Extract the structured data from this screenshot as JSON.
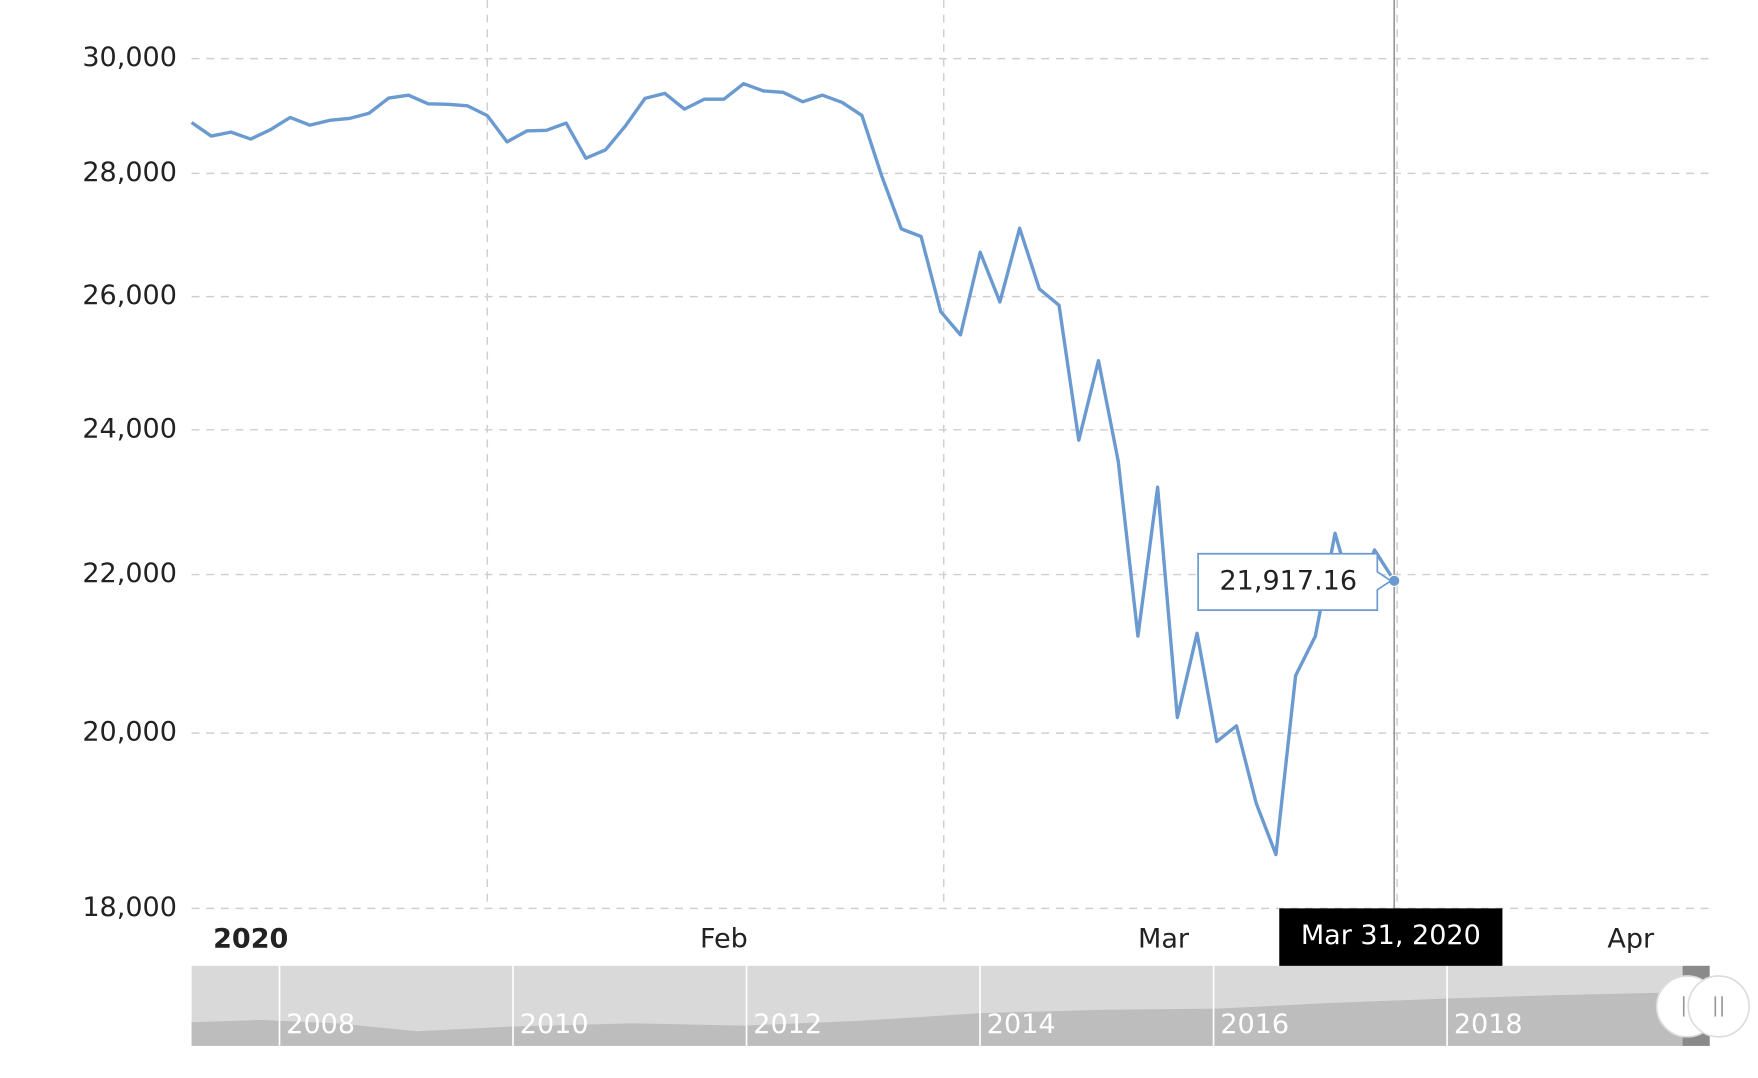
{
  "chart_data": {
    "type": "line",
    "log_scale": true,
    "grid": true,
    "color": "#6a9ad0",
    "categories": [
      null,
      null,
      null,
      null,
      null,
      null,
      null,
      null,
      null,
      null,
      null,
      null,
      null,
      null,
      null,
      null,
      null,
      null,
      null,
      null,
      null,
      null,
      null,
      null,
      null,
      null,
      null,
      null,
      null,
      null,
      null,
      null,
      null,
      null,
      null,
      null,
      null,
      null,
      null,
      null,
      null,
      null,
      null,
      null,
      null,
      null,
      null,
      null,
      null,
      null,
      null,
      null,
      null,
      null,
      null,
      null,
      null,
      null,
      null,
      null,
      null,
      "Mar 31, 2020"
    ],
    "values": [
      28868.8,
      28634.88,
      28703.38,
      28583.68,
      28745.09,
      28956.9,
      28823.77,
      28907.05,
      28939.67,
      29030.22,
      29297.64,
      29348.1,
      29196.04,
      29186.27,
      29160.09,
      28989.73,
      28535.8,
      28722.85,
      28734.45,
      28859.44,
      28256.03,
      28399.81,
      28807.63,
      29290.85,
      29379.77,
      29102.51,
      29276.82,
      29276.34,
      29551.42,
      29423.31,
      29398.08,
      29232.19,
      29348.03,
      29219.98,
      28992.41,
      27960.8,
      27081.36,
      26957.59,
      25766.64,
      25409.36,
      26703.32,
      25917.41,
      27090.86,
      26121.28,
      25864.78,
      23851.02,
      25018.16,
      23553.22,
      21200.62,
      23185.62,
      20188.52,
      21237.38,
      19898.92,
      20087.19,
      19173.98,
      18591.93,
      20704.91,
      21200.55,
      22552.17,
      21636.78,
      22327.48,
      21917.16
    ],
    "value_labels": [
      null,
      null,
      null,
      null,
      null,
      null,
      null,
      null,
      null,
      null,
      null,
      null,
      null,
      null,
      null,
      null,
      null,
      null,
      null,
      null,
      null,
      null,
      null,
      null,
      null,
      null,
      null,
      null,
      null,
      null,
      null,
      null,
      null,
      null,
      null,
      null,
      null,
      null,
      null,
      null,
      null,
      null,
      null,
      null,
      null,
      null,
      null,
      null,
      null,
      null,
      null,
      null,
      null,
      null,
      null,
      null,
      null,
      null,
      null,
      null,
      null,
      "21,917.16"
    ],
    "xlim": [
      0,
      77
    ],
    "xticks": [
      {
        "value": 3,
        "label": "2020"
      },
      {
        "value": 27,
        "label": "Feb"
      },
      {
        "value": 49.3,
        "label": "Mar"
      },
      {
        "value": 73,
        "label": "Apr"
      }
    ],
    "ylim": [
      18000,
      30000
    ],
    "yticks": [
      {
        "value": 18000,
        "label": "18,000"
      },
      {
        "value": 20000,
        "label": "20,000"
      },
      {
        "value": 22000,
        "label": "22,000"
      },
      {
        "value": 24000,
        "label": "24,000"
      },
      {
        "value": 26000,
        "label": "26,000"
      },
      {
        "value": 28000,
        "label": "28,000"
      },
      {
        "value": 30000,
        "label": "30,000"
      }
    ],
    "navigator": {
      "labels": [
        "2008",
        "2010",
        "2012",
        "2014",
        "2016",
        "2018"
      ]
    }
  }
}
